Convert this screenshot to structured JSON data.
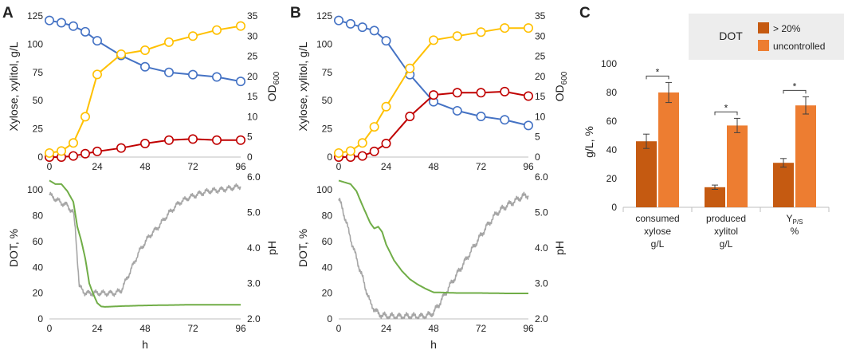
{
  "panel_labels": [
    "A",
    "B",
    "C"
  ],
  "colors": {
    "xylose": "#4472C4",
    "xylitol": "#C00000",
    "od600": "#FFC000",
    "dot": "#A6A6A6",
    "ph": "#70AD47",
    "bar_dark": "#C55A11",
    "bar_light": "#ED7D31",
    "legend_bg": "#EDEDED",
    "axis": "#BFBFBF",
    "text": "#222222"
  },
  "chart_data": [
    {
      "id": "A-top",
      "type": "line",
      "panel": "A",
      "ylabel": "Xylose, xylitol, g/L",
      "y2label": "OD600",
      "xlim": [
        0,
        96
      ],
      "xticks": [
        "0",
        "24",
        "48",
        "72",
        "96"
      ],
      "ylim": [
        0,
        125
      ],
      "yticks": [
        "0",
        "25",
        "50",
        "75",
        "100",
        "125"
      ],
      "y2lim": [
        0,
        35
      ],
      "y2ticks": [
        "0",
        "5",
        "10",
        "15",
        "20",
        "25",
        "30",
        "35"
      ],
      "series": [
        {
          "name": "xylose",
          "axis": "left",
          "marker": "circle",
          "x": [
            0,
            6,
            12,
            18,
            24,
            36,
            48,
            60,
            72,
            84,
            96
          ],
          "values": [
            121,
            119,
            116,
            111,
            103,
            90,
            80,
            75,
            73,
            71,
            67
          ]
        },
        {
          "name": "xylitol",
          "axis": "left",
          "marker": "circle",
          "x": [
            0,
            6,
            12,
            18,
            24,
            36,
            48,
            60,
            72,
            84,
            96
          ],
          "values": [
            0,
            0,
            1,
            3,
            5,
            8,
            12,
            15,
            16,
            15,
            15
          ]
        },
        {
          "name": "OD600",
          "axis": "right",
          "marker": "circle",
          "x": [
            0,
            6,
            12,
            18,
            24,
            36,
            48,
            60,
            72,
            84,
            96
          ],
          "values": [
            1,
            1.5,
            3.5,
            10,
            20.5,
            25.5,
            26.5,
            28.5,
            30,
            31.5,
            32.5
          ]
        }
      ]
    },
    {
      "id": "B-top",
      "type": "line",
      "panel": "B",
      "ylabel": "Xylose, xylitol, g/L",
      "y2label": "OD600",
      "xlim": [
        0,
        96
      ],
      "xticks": [
        "0",
        "24",
        "48",
        "72",
        "96"
      ],
      "ylim": [
        0,
        125
      ],
      "yticks": [
        "0",
        "25",
        "50",
        "75",
        "100",
        "125"
      ],
      "y2lim": [
        0,
        35
      ],
      "y2ticks": [
        "0",
        "5",
        "10",
        "15",
        "20",
        "25",
        "30",
        "35"
      ],
      "series": [
        {
          "name": "xylose",
          "axis": "left",
          "marker": "circle",
          "x": [
            0,
            6,
            12,
            18,
            24,
            36,
            48,
            60,
            72,
            84,
            96
          ],
          "values": [
            121,
            118,
            115,
            112,
            103,
            73,
            49,
            41,
            36,
            33,
            28
          ]
        },
        {
          "name": "xylitol",
          "axis": "left",
          "marker": "circle",
          "x": [
            0,
            6,
            12,
            18,
            24,
            36,
            48,
            60,
            72,
            84,
            96
          ],
          "values": [
            0,
            0,
            1,
            5,
            12,
            36,
            55,
            57,
            57,
            58,
            54
          ]
        },
        {
          "name": "OD600",
          "axis": "right",
          "marker": "circle",
          "x": [
            0,
            6,
            12,
            18,
            24,
            36,
            48,
            60,
            72,
            84,
            96
          ],
          "values": [
            1,
            1.5,
            3.5,
            7.5,
            12.5,
            22,
            29,
            30,
            31,
            32,
            32
          ]
        }
      ]
    },
    {
      "id": "A-bottom",
      "type": "line",
      "panel": "A",
      "ylabel": "DOT, %",
      "y2label": "pH",
      "xlabel": "h",
      "xlim": [
        0,
        96
      ],
      "xticks": [
        "0",
        "24",
        "48",
        "72",
        "96"
      ],
      "ylim": [
        0,
        110
      ],
      "yticks": [
        "0",
        "20",
        "40",
        "60",
        "80",
        "100"
      ],
      "y2lim": [
        2.0,
        6.0
      ],
      "y2ticks": [
        "2.0",
        "3.0",
        "4.0",
        "5.0",
        "6.0"
      ],
      "series": [
        {
          "name": "DOT",
          "axis": "left",
          "noise": 2.5,
          "x": [
            0,
            1,
            6,
            9,
            12,
            13,
            15,
            18,
            24,
            26,
            30,
            33,
            36,
            40,
            45,
            50,
            55,
            60,
            65,
            70,
            75,
            80,
            85,
            90,
            96
          ],
          "values": [
            97,
            95,
            90,
            88,
            82,
            70,
            25,
            20,
            20,
            20,
            20,
            20,
            22,
            35,
            52,
            64,
            72,
            82,
            90,
            94,
            97,
            99,
            100,
            101,
            103
          ]
        },
        {
          "name": "pH",
          "axis": "right",
          "noise": 0,
          "x": [
            0,
            3,
            6,
            9,
            12,
            14,
            16,
            18,
            20,
            22,
            24,
            26,
            28,
            36,
            48,
            60,
            72,
            84,
            96
          ],
          "values": [
            5.9,
            5.8,
            5.8,
            5.6,
            5.3,
            4.6,
            4.2,
            3.7,
            3.0,
            2.7,
            2.45,
            2.35,
            2.34,
            2.36,
            2.38,
            2.39,
            2.4,
            2.4,
            2.4
          ]
        }
      ]
    },
    {
      "id": "B-bottom",
      "type": "line",
      "panel": "B",
      "ylabel": "DOT, %",
      "y2label": "pH",
      "xlabel": "h",
      "xlim": [
        0,
        96
      ],
      "xticks": [
        "0",
        "24",
        "48",
        "72",
        "96"
      ],
      "ylim": [
        0,
        110
      ],
      "yticks": [
        "0",
        "20",
        "40",
        "60",
        "80",
        "100"
      ],
      "y2lim": [
        2.0,
        6.0
      ],
      "y2ticks": [
        "2.0",
        "3.0",
        "4.0",
        "5.0",
        "6.0"
      ],
      "series": [
        {
          "name": "DOT",
          "axis": "left",
          "noise": 3,
          "x": [
            0,
            2,
            5,
            8,
            12,
            16,
            20,
            24,
            30,
            36,
            42,
            46,
            48,
            51,
            54,
            58,
            64,
            70,
            75,
            80,
            85,
            90,
            93,
            96
          ],
          "values": [
            93,
            85,
            68,
            52,
            32,
            12,
            4,
            2,
            2,
            2,
            2,
            3,
            5,
            12,
            20,
            30,
            45,
            60,
            72,
            82,
            88,
            92,
            95,
            96
          ]
        },
        {
          "name": "pH",
          "axis": "right",
          "noise": 0,
          "x": [
            0,
            3,
            6,
            9,
            12,
            14,
            16,
            18,
            20,
            22,
            24,
            28,
            32,
            36,
            40,
            44,
            48,
            55,
            60,
            72,
            84,
            96
          ],
          "values": [
            5.9,
            5.85,
            5.8,
            5.6,
            5.2,
            4.95,
            4.7,
            4.55,
            4.6,
            4.45,
            4.1,
            3.65,
            3.35,
            3.12,
            2.97,
            2.85,
            2.75,
            2.74,
            2.73,
            2.73,
            2.72,
            2.72
          ]
        }
      ]
    },
    {
      "id": "C",
      "type": "bar",
      "panel": "C",
      "ylabel": "g/L, %",
      "ylim": [
        0,
        100
      ],
      "yticks": [
        "0",
        "20",
        "40",
        "60",
        "80",
        "100"
      ],
      "legend_title": "DOT",
      "legend": [
        "> 20%",
        "uncontrolled"
      ],
      "categories": [
        [
          "consumed",
          "xylose",
          "g/L"
        ],
        [
          "produced",
          "xylitol",
          "g/L"
        ],
        [
          "Y",
          "%"
        ]
      ],
      "category_subscript": "P/S",
      "series": [
        {
          "name": "> 20%",
          "values": [
            46,
            14,
            31
          ],
          "errors": [
            5,
            1.5,
            3
          ]
        },
        {
          "name": "uncontrolled",
          "values": [
            80,
            57,
            71
          ],
          "errors": [
            7,
            5,
            6
          ]
        }
      ],
      "significance": [
        "*",
        "*",
        "*"
      ]
    }
  ]
}
